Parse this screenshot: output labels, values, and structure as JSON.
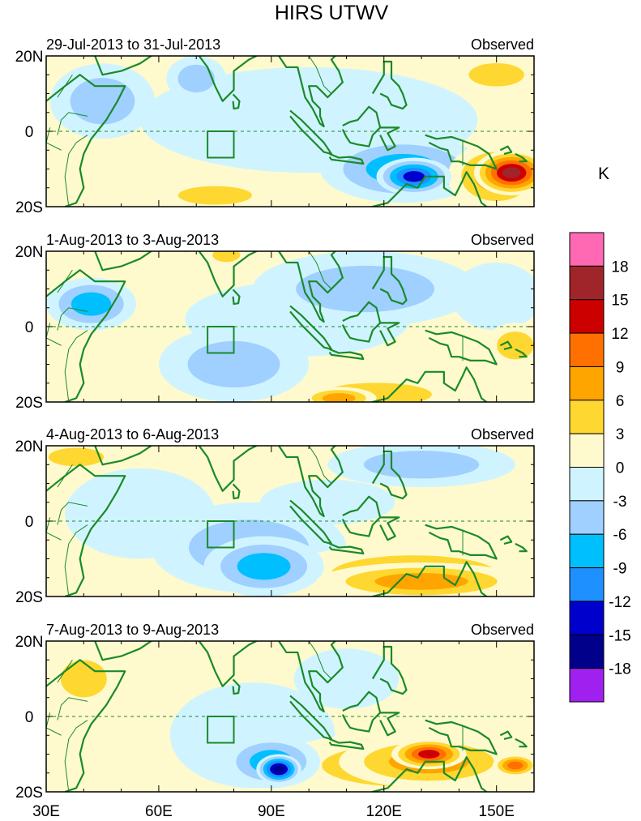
{
  "chart_data": {
    "type": "heatmap",
    "title": "HIRS UTWV",
    "variable_units": "K",
    "lon_range": [
      30,
      160
    ],
    "lat_range": [
      -20,
      20
    ],
    "x_ticks": [
      {
        "value": 30,
        "label": "30E"
      },
      {
        "value": 60,
        "label": "60E"
      },
      {
        "value": 90,
        "label": "90E"
      },
      {
        "value": 120,
        "label": "120E"
      },
      {
        "value": 150,
        "label": "150E"
      }
    ],
    "y_ticks": [
      {
        "value": 20,
        "label": "20N"
      },
      {
        "value": 0,
        "label": "0"
      },
      {
        "value": -20,
        "label": "20S"
      }
    ],
    "equator_line": "dashed",
    "panels": [
      {
        "date_range": "29-Jul-2013 to 31-Jul-2013",
        "tag": "Observed",
        "blobs": [
          {
            "lon": 128,
            "lat": -12,
            "rlon": 10,
            "rlat": 5,
            "v": -15
          },
          {
            "lon": 125,
            "lat": -10,
            "rlon": 22,
            "rlat": 9,
            "v": -8
          },
          {
            "lon": 100,
            "lat": 3,
            "rlon": 45,
            "rlat": 14,
            "v": -3
          },
          {
            "lon": 45,
            "lat": 8,
            "rlon": 14,
            "rlat": 10,
            "v": -4
          },
          {
            "lon": 154,
            "lat": -11,
            "rlon": 10,
            "rlat": 6,
            "v": 17
          },
          {
            "lon": 150,
            "lat": -12,
            "rlon": 13,
            "rlat": 9,
            "v": 8
          },
          {
            "lon": 150,
            "lat": 15,
            "rlon": 12,
            "rlat": 5,
            "v": 5
          },
          {
            "lon": 75,
            "lat": -17,
            "rlon": 16,
            "rlat": 4,
            "v": 4
          },
          {
            "lon": 52,
            "lat": -17,
            "rlon": 10,
            "rlat": 3,
            "v": 3
          },
          {
            "lon": 70,
            "lat": 14,
            "rlon": 8,
            "rlat": 6,
            "v": -4
          }
        ]
      },
      {
        "date_range": "1-Aug-2013 to 3-Aug-2013",
        "tag": "Observed",
        "blobs": [
          {
            "lon": 42,
            "lat": 6,
            "rlon": 12,
            "rlat": 7,
            "v": -8
          },
          {
            "lon": 80,
            "lat": -10,
            "rlon": 20,
            "rlat": 10,
            "v": -5
          },
          {
            "lon": 115,
            "lat": 10,
            "rlon": 30,
            "rlat": 10,
            "v": -4
          },
          {
            "lon": 97,
            "lat": 2,
            "rlon": 30,
            "rlat": 10,
            "v": -3
          },
          {
            "lon": 118,
            "lat": -18,
            "rlon": 24,
            "rlat": 5,
            "v": 6
          },
          {
            "lon": 108,
            "lat": -19,
            "rlon": 10,
            "rlat": 3,
            "v": 9
          },
          {
            "lon": 78,
            "lat": 19,
            "rlon": 6,
            "rlat": 3,
            "v": 6
          },
          {
            "lon": 155,
            "lat": -5,
            "rlon": 8,
            "rlat": 6,
            "v": 4
          },
          {
            "lon": 150,
            "lat": 8,
            "rlon": 12,
            "rlat": 9,
            "v": -3
          }
        ]
      },
      {
        "date_range": "4-Aug-2013 to 6-Aug-2013",
        "tag": "Observed",
        "blobs": [
          {
            "lon": 88,
            "lat": -12,
            "rlon": 16,
            "rlat": 8,
            "v": -8
          },
          {
            "lon": 84,
            "lat": -7,
            "rlon": 26,
            "rlat": 12,
            "v": -4
          },
          {
            "lon": 130,
            "lat": -16,
            "rlon": 28,
            "rlat": 5,
            "v": 9
          },
          {
            "lon": 128,
            "lat": -14,
            "rlon": 36,
            "rlat": 8,
            "v": 5
          },
          {
            "lon": 38,
            "lat": 17,
            "rlon": 12,
            "rlat": 4,
            "v": 4
          },
          {
            "lon": 55,
            "lat": 2,
            "rlon": 20,
            "rlat": 12,
            "v": -3
          },
          {
            "lon": 130,
            "lat": 15,
            "rlon": 25,
            "rlat": 6,
            "v": -4
          },
          {
            "lon": 105,
            "lat": 5,
            "rlon": 18,
            "rlat": 6,
            "v": -3
          }
        ]
      },
      {
        "date_range": "7-Aug-2013 to 9-Aug-2013",
        "tag": "Observed",
        "blobs": [
          {
            "lon": 92,
            "lat": -14,
            "rlon": 6,
            "rlat": 4,
            "v": -16
          },
          {
            "lon": 90,
            "lat": -12,
            "rlon": 13,
            "rlat": 7,
            "v": -8
          },
          {
            "lon": 85,
            "lat": -5,
            "rlon": 22,
            "rlat": 14,
            "v": -3
          },
          {
            "lon": 132,
            "lat": -10,
            "rlon": 10,
            "rlat": 4,
            "v": 14
          },
          {
            "lon": 132,
            "lat": -12,
            "rlon": 24,
            "rlat": 7,
            "v": 8
          },
          {
            "lon": 125,
            "lat": -13,
            "rlon": 35,
            "rlat": 9,
            "v": 4
          },
          {
            "lon": 155,
            "lat": -13,
            "rlon": 6,
            "rlat": 3,
            "v": 11
          },
          {
            "lon": 40,
            "lat": 10,
            "rlon": 10,
            "rlat": 8,
            "v": 4
          },
          {
            "lon": 65,
            "lat": 10,
            "rlon": 10,
            "rlat": 4,
            "v": 3
          },
          {
            "lon": 110,
            "lat": 10,
            "rlon": 14,
            "rlat": 8,
            "v": -3
          },
          {
            "lon": 145,
            "lat": 5,
            "rlon": 12,
            "rlat": 6,
            "v": 3
          }
        ]
      }
    ],
    "colorbar": {
      "labels": [
        "18",
        "15",
        "12",
        "9",
        "6",
        "3",
        "0",
        "-3",
        "-6",
        "-9",
        "-12",
        "-15",
        "-18"
      ],
      "levels": [
        -18,
        -15,
        -12,
        -9,
        -6,
        -3,
        0,
        3,
        6,
        9,
        12,
        15,
        18
      ],
      "colors": [
        "#a020f0",
        "#00008b",
        "#0000cd",
        "#1e90ff",
        "#00bfff",
        "#a0d0ff",
        "#d0f4ff",
        "#fffacd",
        "#ffd731",
        "#ffa500",
        "#ff7000",
        "#cd0000",
        "#a0252a",
        "#ff69b4"
      ]
    },
    "map_color": "#1a8a2a",
    "box_region": {
      "lon": [
        73,
        80
      ],
      "lat": [
        -7,
        0
      ]
    }
  }
}
